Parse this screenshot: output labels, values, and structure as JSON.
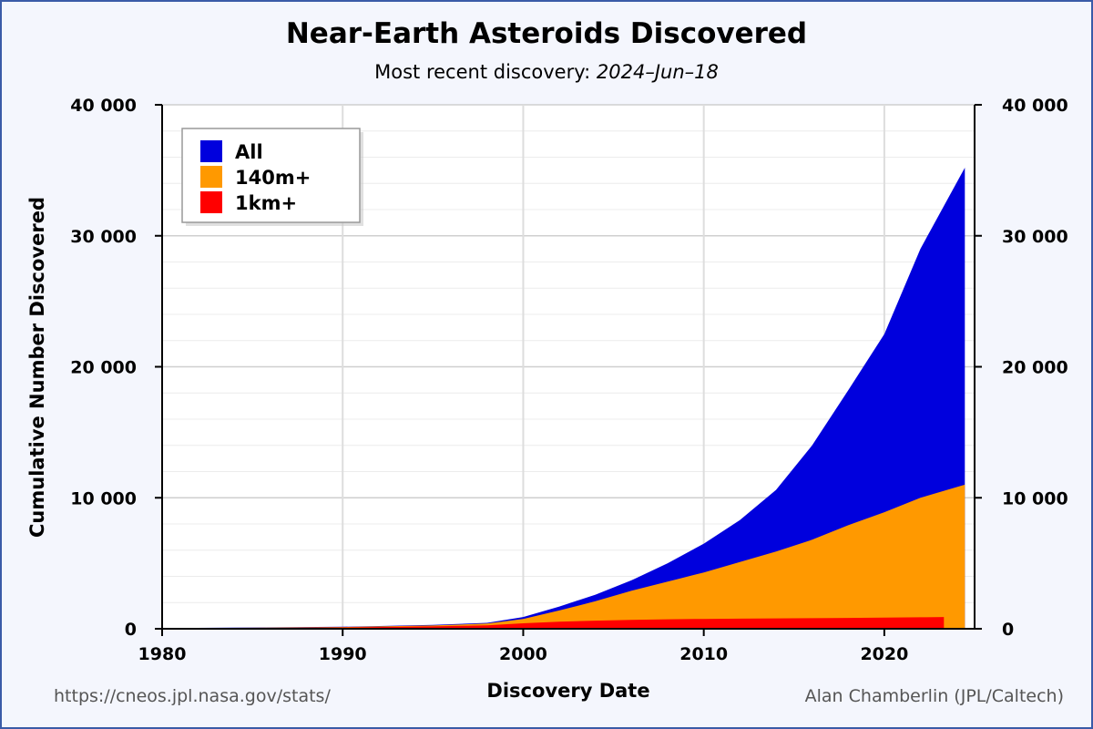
{
  "chart_data": {
    "type": "area",
    "title": "Near-Earth Asteroids Discovered",
    "subtitle_prefix": "Most recent discovery: ",
    "subtitle_date": "2024–Jun–18",
    "xlabel": "Discovery Date",
    "ylabel": "Cumulative Number Discovered",
    "xlim": [
      1980,
      2025
    ],
    "ylim": [
      0,
      40000
    ],
    "x_ticks": [
      1980,
      1990,
      2000,
      2010,
      2020
    ],
    "y_ticks": [
      0,
      10000,
      20000,
      30000,
      40000
    ],
    "y_tick_labels": [
      "0",
      "10 000",
      "20 000",
      "30 000",
      "40 000"
    ],
    "grid": true,
    "legend_position": "top-left",
    "series": [
      {
        "name": "All",
        "color": "#0000dd",
        "x": [
          1980,
          1985,
          1990,
          1995,
          1998,
          2000,
          2002,
          2004,
          2006,
          2008,
          2010,
          2012,
          2014,
          2016,
          2018,
          2020,
          2022,
          2024.46
        ],
        "values": [
          50,
          100,
          150,
          300,
          450,
          900,
          1700,
          2600,
          3700,
          5000,
          6500,
          8300,
          10600,
          14000,
          18200,
          22500,
          29000,
          35200
        ]
      },
      {
        "name": "140m+",
        "color": "#ff9900",
        "x": [
          1980,
          1985,
          1990,
          1995,
          1998,
          2000,
          2002,
          2004,
          2006,
          2008,
          2010,
          2012,
          2014,
          2016,
          2018,
          2020,
          2022,
          2024.46
        ],
        "values": [
          40,
          80,
          130,
          250,
          400,
          750,
          1400,
          2100,
          2900,
          3600,
          4300,
          5100,
          5900,
          6800,
          7900,
          8900,
          10000,
          11000
        ]
      },
      {
        "name": "1km+",
        "color": "#ff0000",
        "x": [
          1980,
          1985,
          1990,
          1995,
          1998,
          2000,
          2002,
          2004,
          2006,
          2008,
          2010,
          2012,
          2014,
          2016,
          2018,
          2020,
          2022,
          2023.3
        ],
        "values": [
          30,
          60,
          100,
          180,
          260,
          420,
          540,
          620,
          680,
          720,
          750,
          770,
          790,
          810,
          830,
          850,
          880,
          900
        ]
      }
    ]
  },
  "footer": {
    "source": "https://cneos.jpl.nasa.gov/stats/",
    "credit": "Alan Chamberlin (JPL/Caltech)"
  },
  "colors": {
    "plot_background": "#ffffff",
    "page_background": "#f4f6fd",
    "frame_border": "#3a5ba8",
    "grid": "#dddddd"
  }
}
